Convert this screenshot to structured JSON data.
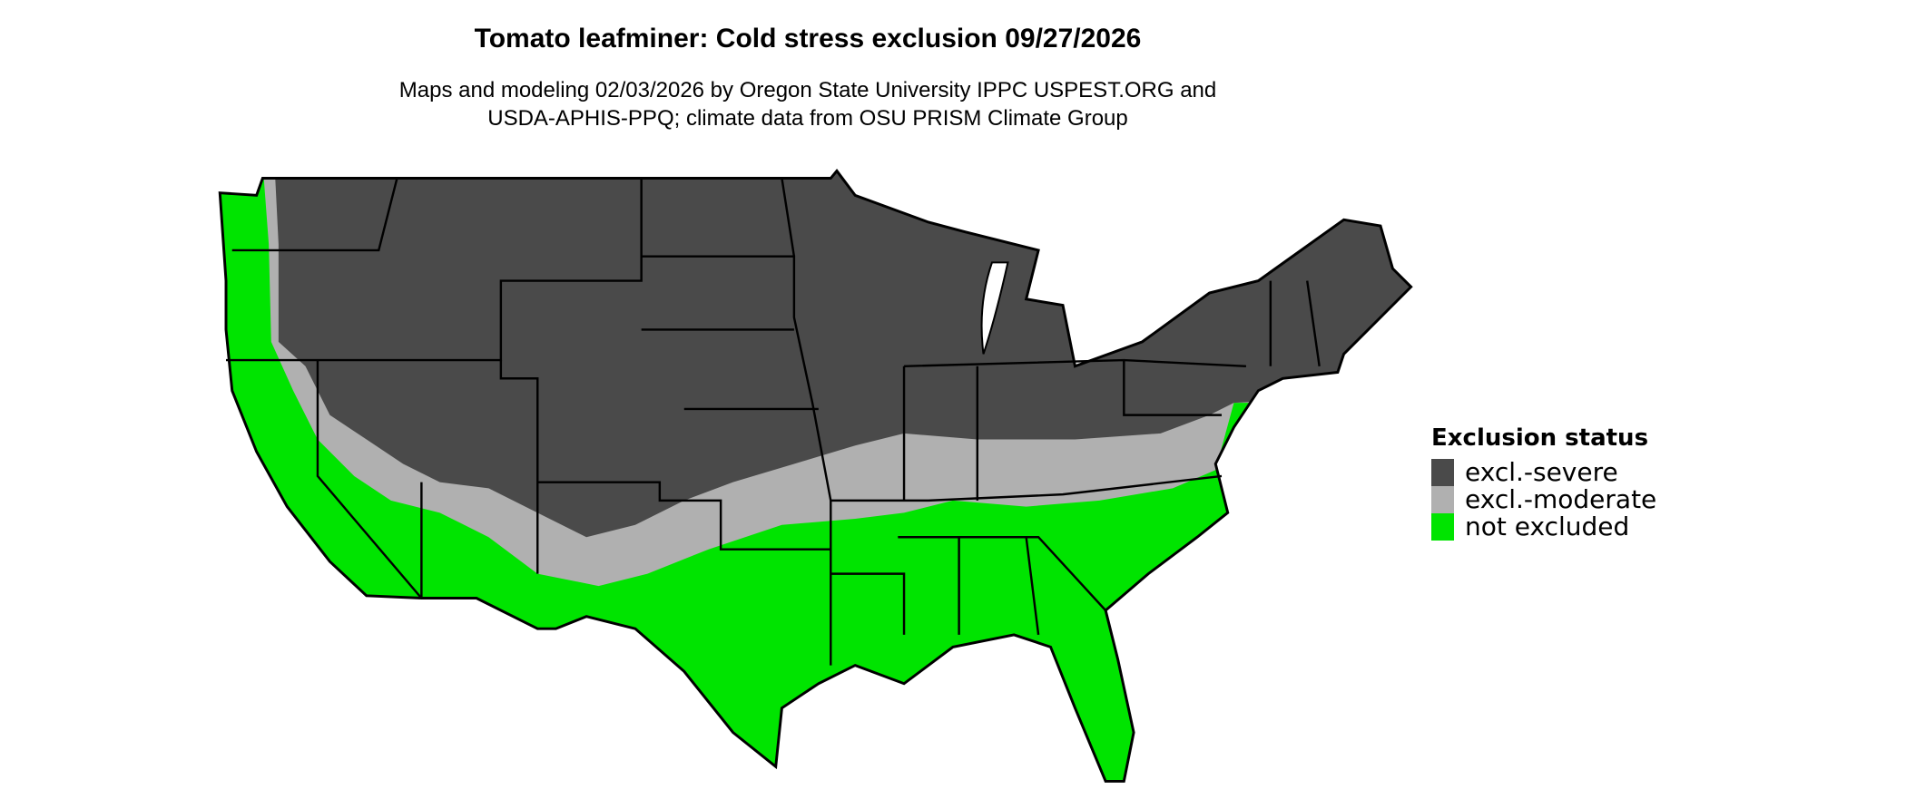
{
  "title": "Tomato leafminer: Cold stress exclusion 09/27/2026",
  "subtitle_lines": [
    "Maps and modeling 02/03/2026 by Oregon State University IPPC USPEST.ORG and",
    "USDA-APHIS-PPQ; climate data from OSU PRISM Climate Group"
  ],
  "legend": {
    "title": "Exclusion status",
    "position": "right",
    "items": [
      {
        "label": "excl.-severe",
        "color": "#4a4a4a"
      },
      {
        "label": "excl.-moderate",
        "color": "#b0b0b0"
      },
      {
        "label": "not excluded",
        "color": "#00e400"
      }
    ]
  },
  "map": {
    "region": "Contiguous United States",
    "state_borders": true,
    "border_color": "#000000"
  }
}
